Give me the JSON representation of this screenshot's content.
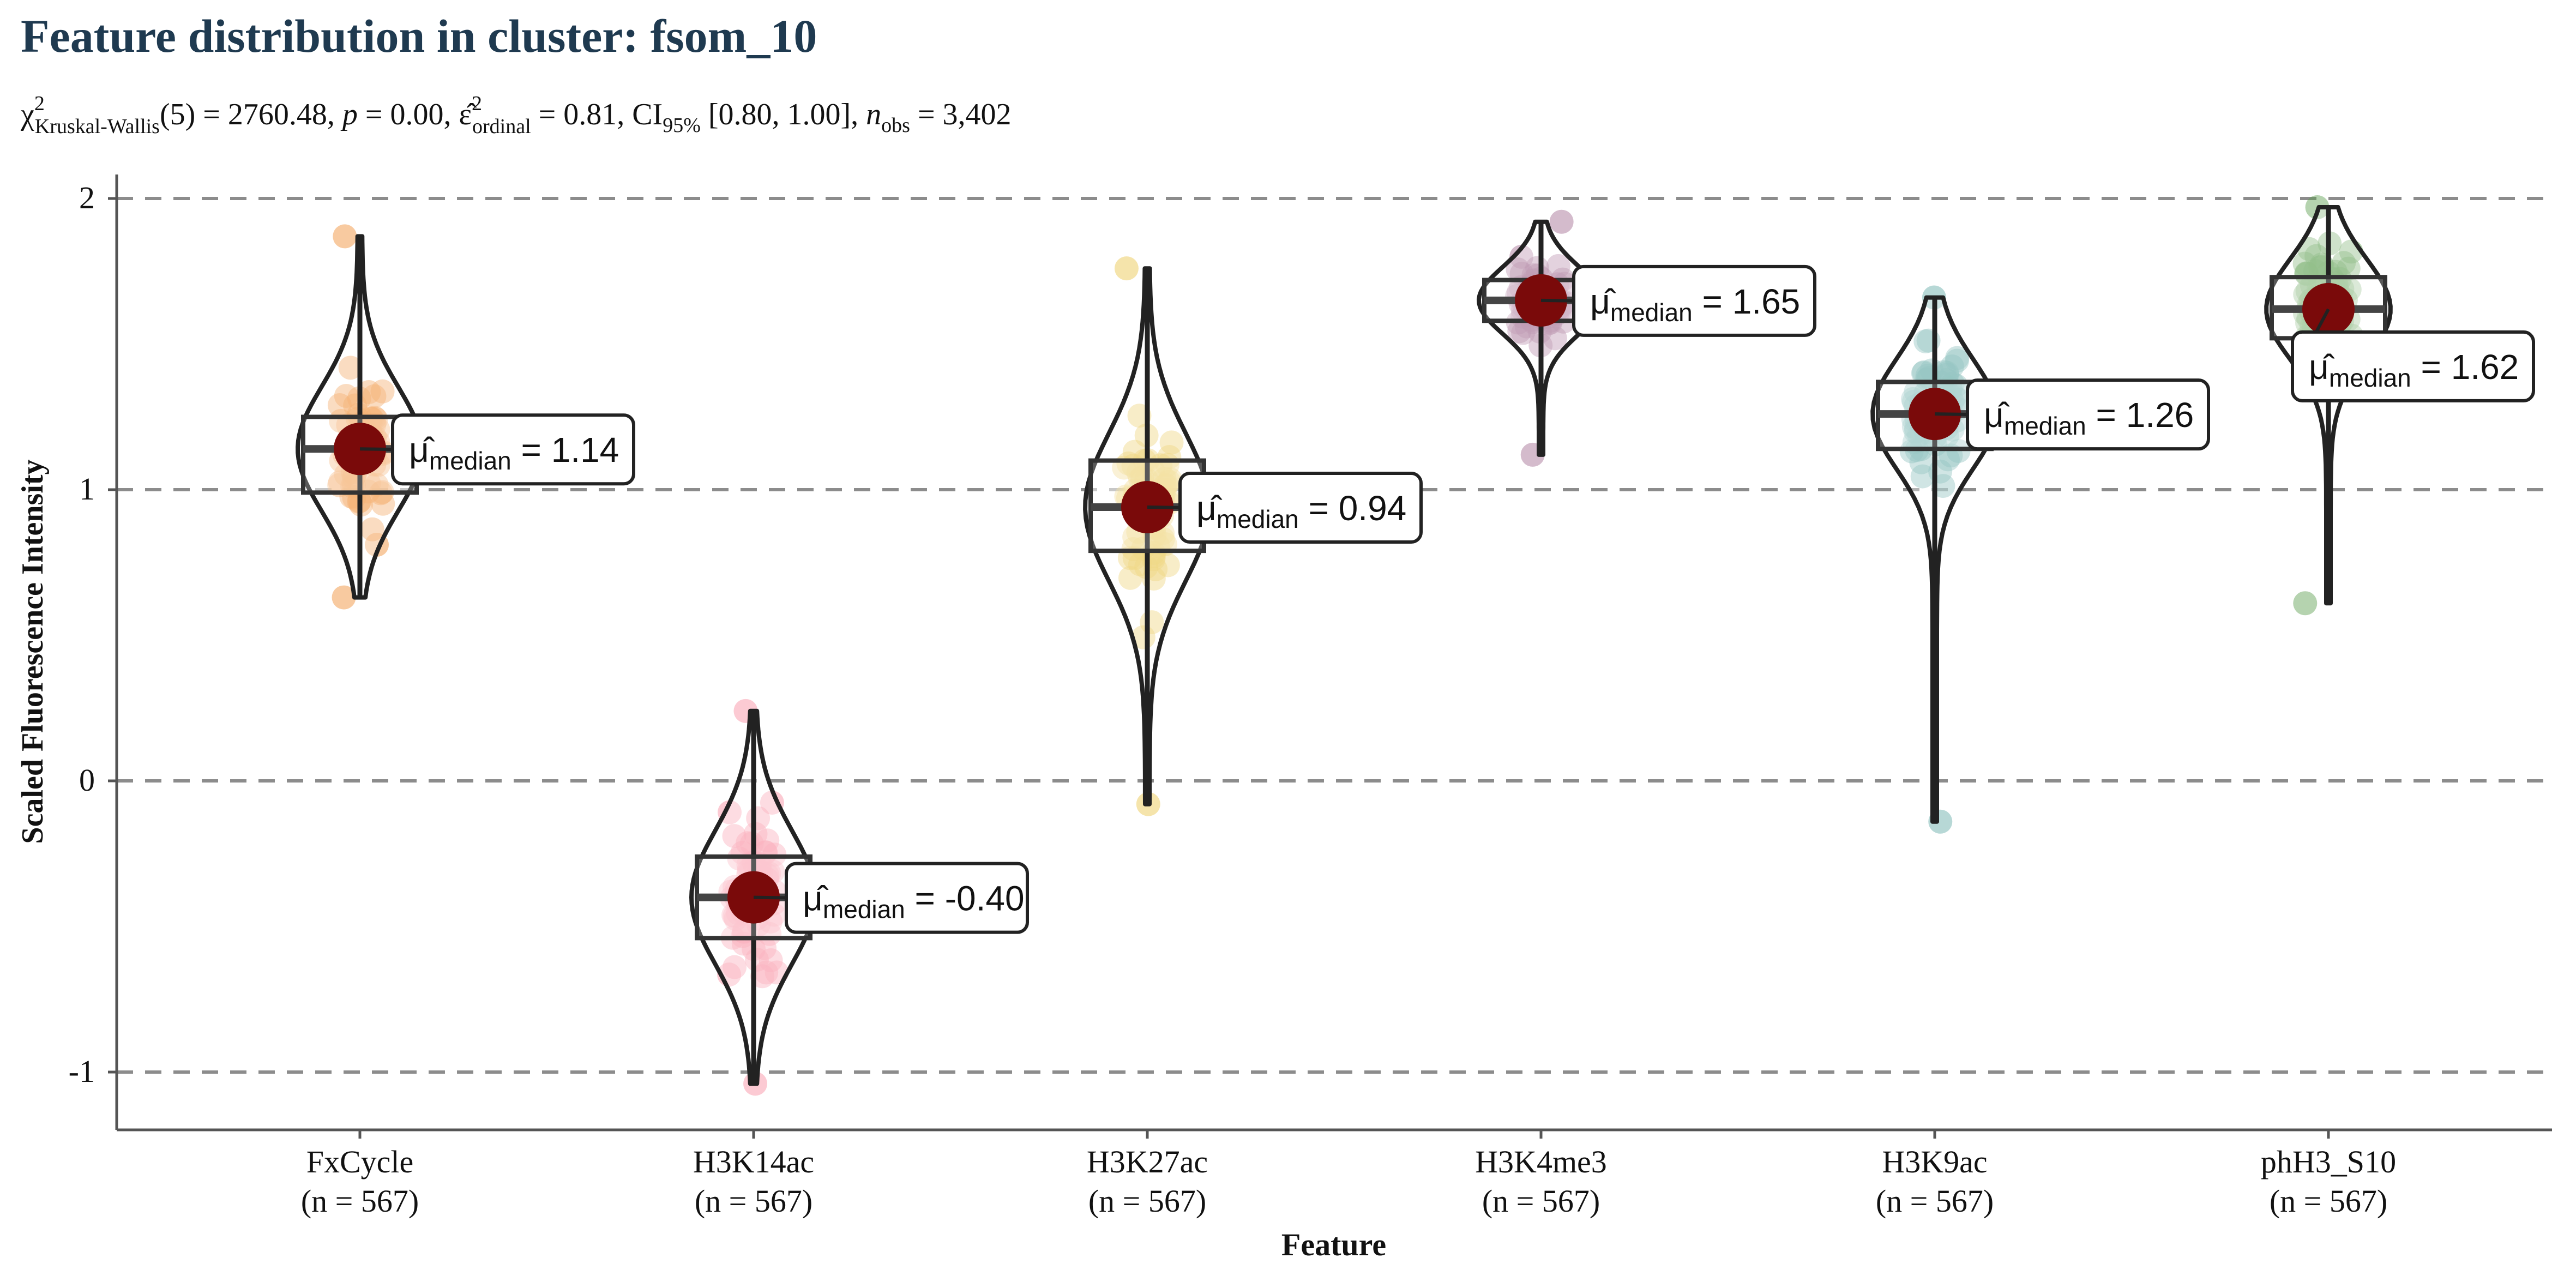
{
  "chart_data": {
    "type": "violin",
    "title": "Feature distribution in cluster: fsom_10",
    "subtitle": {
      "chi": "χ",
      "chi_sup": "2",
      "chi_sub": "Kruskal-Wallis",
      "df_stat": "(5) = 2760.48, ",
      "p_var": "p",
      "p_val": " = 0.00, ",
      "eps": "ε̂",
      "eps_sup": "2",
      "eps_sub": "ordinal",
      "eps_val": " = 0.81, CI",
      "ci_sub": "95%",
      "ci_val": " [0.80, 1.00], ",
      "n_var": "n",
      "n_sub": "obs",
      "n_val": " = 3,402"
    },
    "xlabel": "Feature",
    "ylabel": "Scaled Fluorescence Intensity",
    "ylim": [
      -1.2,
      2.05
    ],
    "yticks": [
      -1,
      0,
      1,
      2
    ],
    "ytick_labels": [
      "-1",
      "0",
      "1",
      "2"
    ],
    "grid": "horizontal dashed at y ticks",
    "label_mu": "μ̂",
    "label_sub": "median",
    "categories": [
      {
        "name": "FxCycle",
        "n_label": "(n = 567)",
        "color": "#f08a2c",
        "median": 1.14,
        "median_label": "1.14",
        "q1": 0.99,
        "q3": 1.25,
        "min": 0.63,
        "max": 1.87
      },
      {
        "name": "H3K14ac",
        "n_label": "(n = 567)",
        "color": "#f88a9e",
        "median": -0.4,
        "median_label": "-0.40",
        "q1": -0.54,
        "q3": -0.26,
        "min": -1.04,
        "max": 0.24
      },
      {
        "name": "H3K27ac",
        "n_label": "(n = 567)",
        "color": "#e8c445",
        "median": 0.94,
        "median_label": "0.94",
        "q1": 0.79,
        "q3": 1.1,
        "min": -0.08,
        "max": 1.76
      },
      {
        "name": "H3K4me3",
        "n_label": "(n = 567)",
        "color": "#a0688e",
        "median": 1.65,
        "median_label": "1.65",
        "q1": 1.58,
        "q3": 1.72,
        "min": 1.12,
        "max": 1.92
      },
      {
        "name": "H3K9ac",
        "n_label": "(n = 567)",
        "color": "#5fa8a4",
        "median": 1.26,
        "median_label": "1.26",
        "q1": 1.14,
        "q3": 1.37,
        "min": -0.14,
        "max": 1.66
      },
      {
        "name": "phH3_S10",
        "n_label": "(n = 567)",
        "color": "#5a9e4e",
        "median": 1.62,
        "median_label": "1.62",
        "q1": 1.52,
        "q3": 1.73,
        "min": 0.61,
        "max": 1.97
      }
    ],
    "median_point_color": "#7a0a0a"
  }
}
